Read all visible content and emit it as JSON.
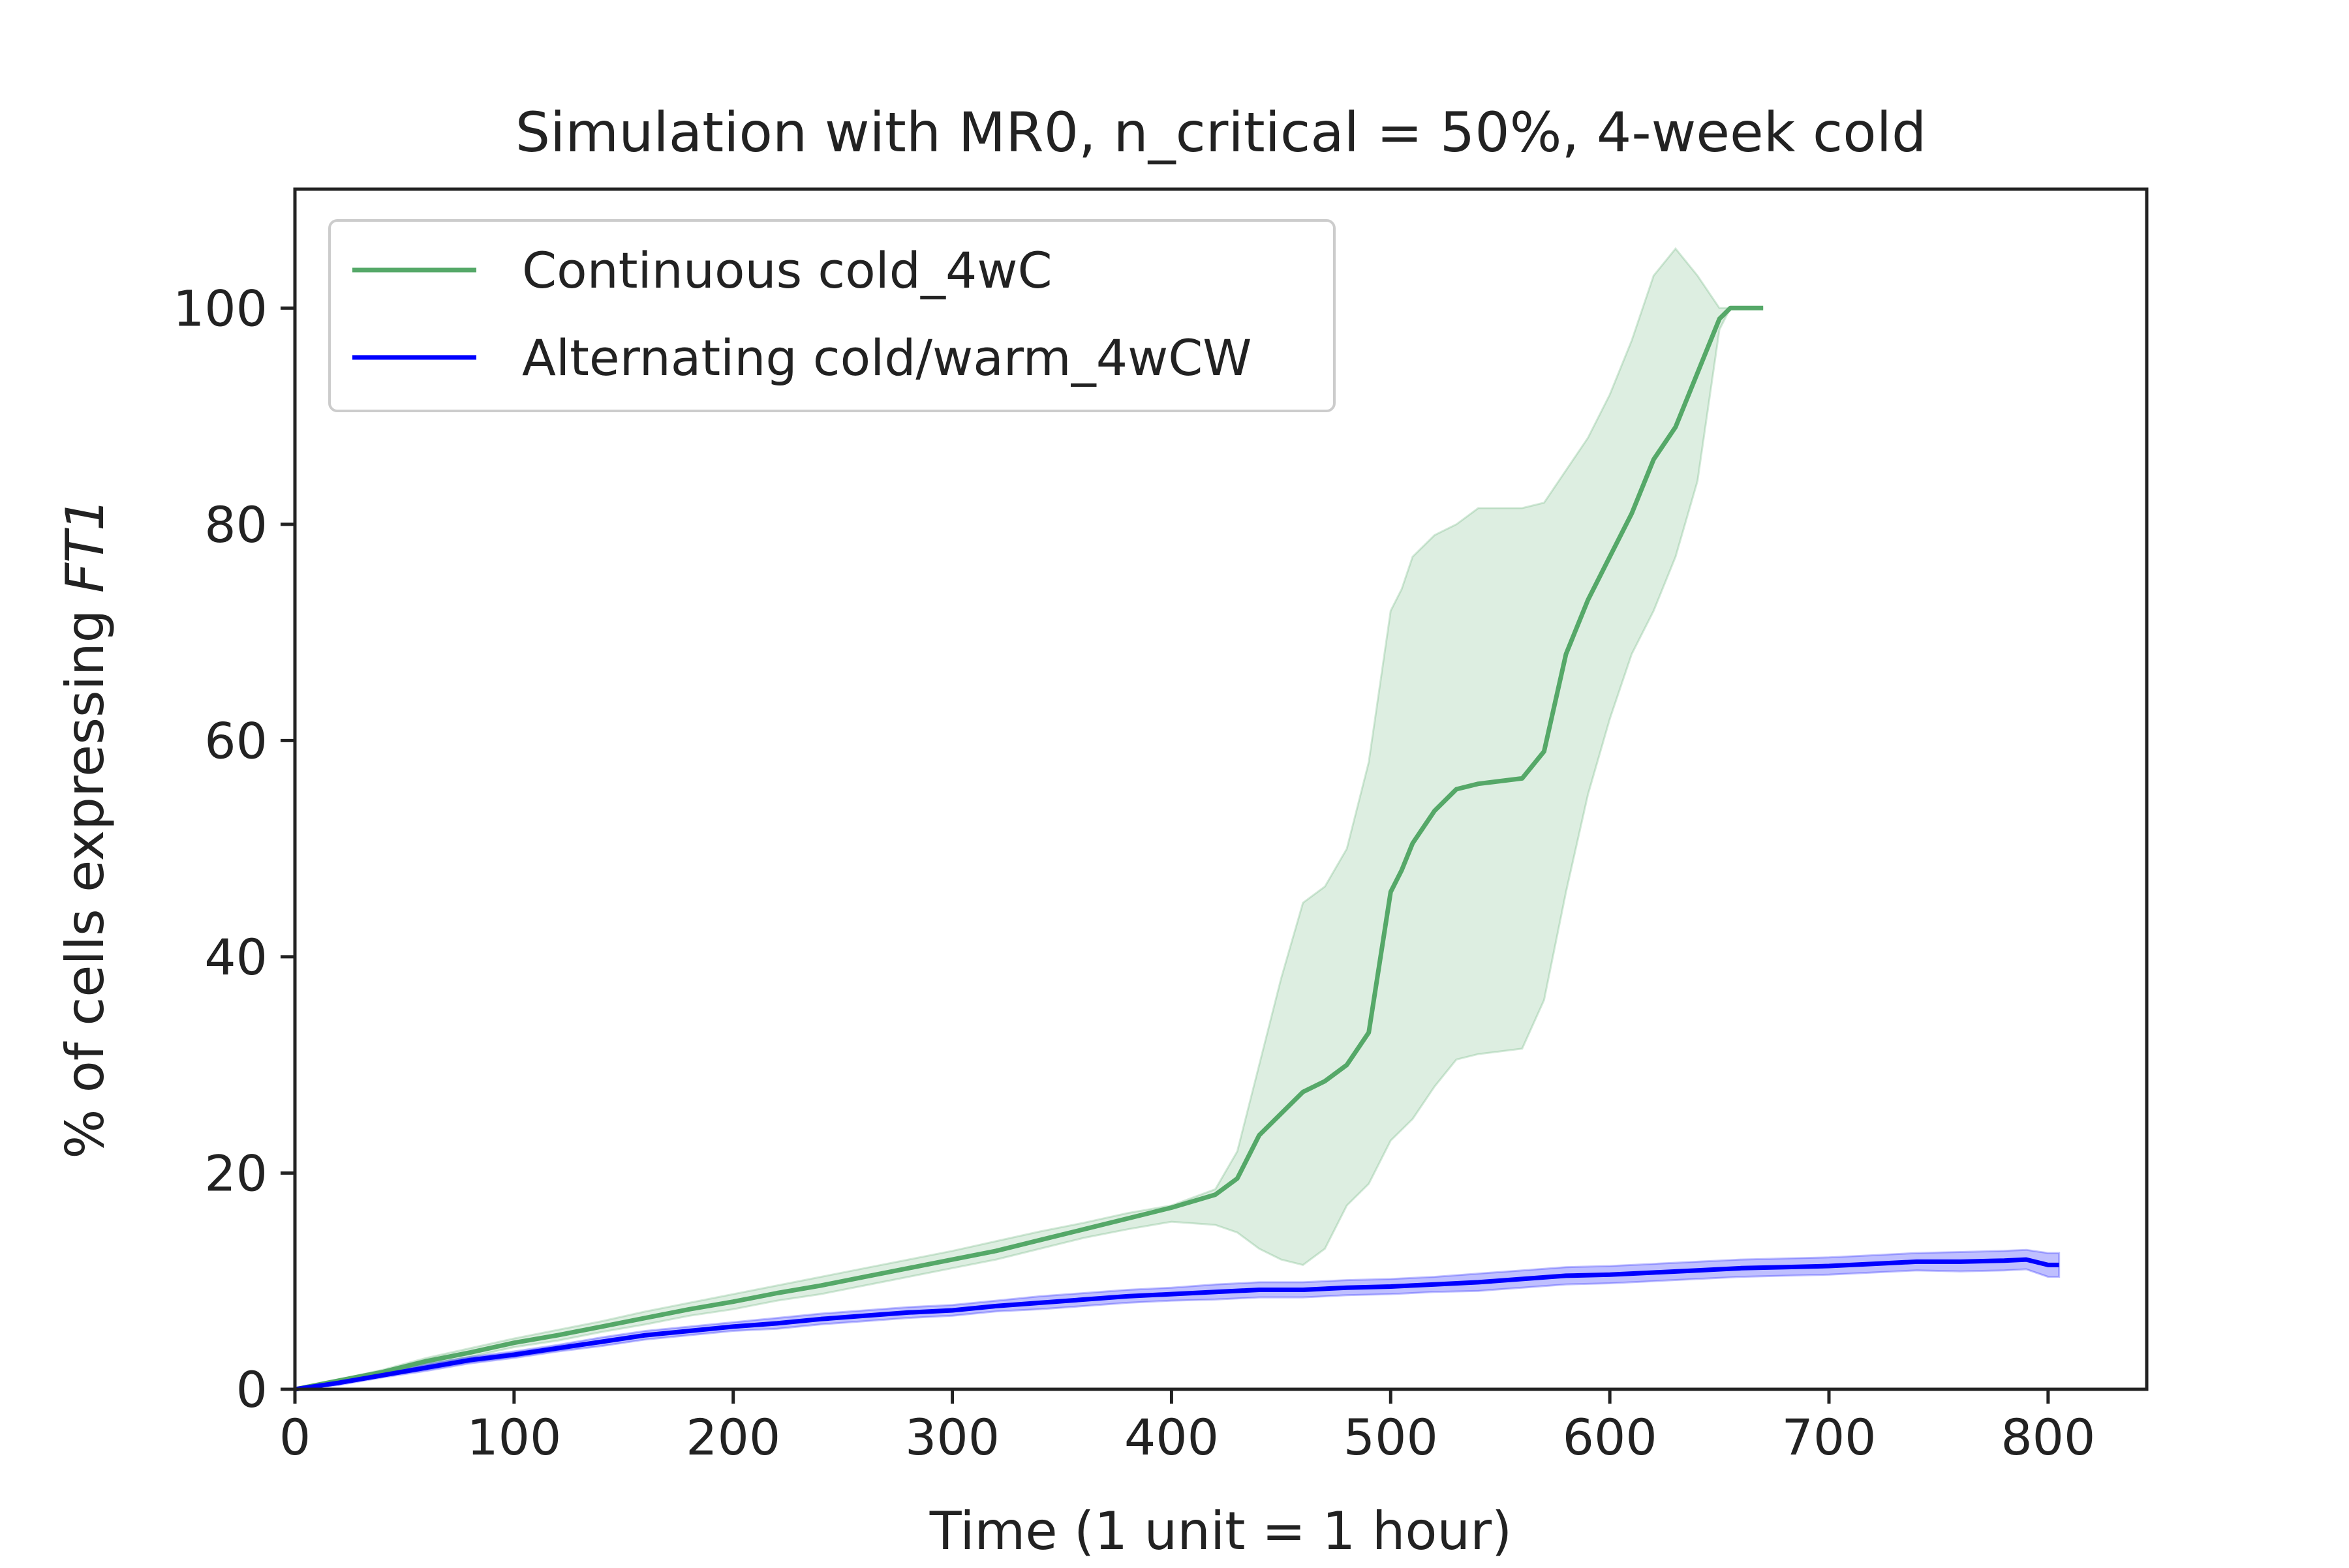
{
  "chart_data": {
    "type": "line",
    "title": "Simulation with MR0, n_critical = 50%, 4-week cold",
    "xlabel": "Time (1 unit = 1 hour)",
    "ylabel_plain": "% of cells expressing ",
    "ylabel_italic": "FT1",
    "xlim": [
      0,
      845
    ],
    "ylim": [
      0,
      111
    ],
    "xticks": [
      0,
      100,
      200,
      300,
      400,
      500,
      600,
      700,
      800
    ],
    "yticks": [
      0,
      20,
      40,
      60,
      80,
      100
    ],
    "grid": false,
    "legend_position": "top-left",
    "series": [
      {
        "name": "Continuous cold_4wC",
        "color": "#55a868",
        "band_color": "#55a868",
        "x": [
          0,
          20,
          40,
          60,
          80,
          100,
          120,
          140,
          160,
          180,
          200,
          220,
          240,
          260,
          280,
          300,
          320,
          340,
          360,
          380,
          400,
          420,
          430,
          440,
          450,
          460,
          470,
          480,
          490,
          500,
          505,
          510,
          520,
          530,
          540,
          560,
          570,
          580,
          590,
          600,
          610,
          620,
          630,
          640,
          650,
          655,
          670
        ],
        "y": [
          0,
          0.8,
          1.6,
          2.6,
          3.4,
          4.3,
          5.0,
          5.8,
          6.6,
          7.4,
          8.1,
          8.9,
          9.6,
          10.4,
          11.2,
          12.0,
          12.8,
          13.8,
          14.8,
          15.8,
          16.8,
          18.0,
          19.5,
          23.5,
          25.5,
          27.5,
          28.5,
          30.0,
          33.0,
          46.0,
          48.0,
          50.5,
          53.5,
          55.5,
          56.0,
          56.5,
          59.0,
          68.0,
          73.0,
          77.0,
          81.0,
          86.0,
          89.0,
          94.0,
          99.0,
          100.0,
          100.0
        ],
        "upper": [
          0,
          0.9,
          1.8,
          2.9,
          3.8,
          4.7,
          5.5,
          6.3,
          7.2,
          8.0,
          8.8,
          9.6,
          10.4,
          11.2,
          12.0,
          12.8,
          13.7,
          14.6,
          15.4,
          16.3,
          17.0,
          18.5,
          22.0,
          30.0,
          38.0,
          45.0,
          46.5,
          50.0,
          58.0,
          72.0,
          74.0,
          77.0,
          79.0,
          80.0,
          81.5,
          81.5,
          82.0,
          85.0,
          88.0,
          92.0,
          97.0,
          103.0,
          105.5,
          103.0,
          100.0,
          100.0,
          100.0
        ],
        "lower": [
          0,
          0.7,
          1.4,
          2.3,
          3.0,
          3.9,
          4.5,
          5.3,
          6.0,
          6.8,
          7.4,
          8.2,
          8.8,
          9.6,
          10.4,
          11.2,
          12.0,
          13.0,
          14.0,
          14.8,
          15.5,
          15.2,
          14.5,
          13.0,
          12.0,
          11.5,
          13.0,
          17.0,
          19.0,
          23.0,
          24.0,
          25.0,
          28.0,
          30.5,
          31.0,
          31.5,
          36.0,
          46.0,
          55.0,
          62.0,
          68.0,
          72.0,
          77.0,
          84.0,
          98.0,
          100.0,
          100.0
        ]
      },
      {
        "name": "Alternating cold/warm_4wCW",
        "color": "#0000ff",
        "band_color": "#0000ff",
        "x": [
          0,
          20,
          40,
          60,
          80,
          100,
          120,
          140,
          160,
          180,
          200,
          220,
          240,
          260,
          280,
          300,
          320,
          340,
          360,
          380,
          400,
          420,
          440,
          460,
          480,
          500,
          520,
          540,
          560,
          580,
          600,
          620,
          640,
          660,
          680,
          700,
          720,
          740,
          760,
          780,
          790,
          800,
          805
        ],
        "y": [
          0,
          0.6,
          1.3,
          2.0,
          2.7,
          3.2,
          3.8,
          4.4,
          5.0,
          5.4,
          5.8,
          6.1,
          6.5,
          6.8,
          7.1,
          7.3,
          7.7,
          8.0,
          8.3,
          8.6,
          8.8,
          9.0,
          9.2,
          9.2,
          9.4,
          9.5,
          9.7,
          9.9,
          10.2,
          10.5,
          10.6,
          10.8,
          11.0,
          11.2,
          11.3,
          11.4,
          11.6,
          11.8,
          11.8,
          11.9,
          12.0,
          11.5,
          11.5
        ],
        "upper": [
          0,
          0.8,
          1.5,
          2.3,
          3.0,
          3.5,
          4.1,
          4.8,
          5.4,
          5.8,
          6.2,
          6.6,
          7.0,
          7.3,
          7.6,
          7.8,
          8.2,
          8.6,
          8.9,
          9.2,
          9.4,
          9.7,
          9.9,
          9.9,
          10.1,
          10.2,
          10.4,
          10.7,
          11.0,
          11.3,
          11.4,
          11.6,
          11.8,
          12.0,
          12.1,
          12.2,
          12.4,
          12.6,
          12.7,
          12.8,
          12.9,
          12.6,
          12.6
        ],
        "lower": [
          0,
          0.4,
          1.1,
          1.7,
          2.4,
          2.9,
          3.5,
          4.0,
          4.6,
          5.0,
          5.4,
          5.6,
          6.0,
          6.3,
          6.6,
          6.8,
          7.2,
          7.4,
          7.7,
          8.0,
          8.2,
          8.3,
          8.5,
          8.5,
          8.7,
          8.8,
          9.0,
          9.1,
          9.4,
          9.7,
          9.8,
          10.0,
          10.2,
          10.4,
          10.5,
          10.6,
          10.8,
          11.0,
          10.9,
          11.0,
          11.1,
          10.4,
          10.4
        ]
      }
    ]
  }
}
